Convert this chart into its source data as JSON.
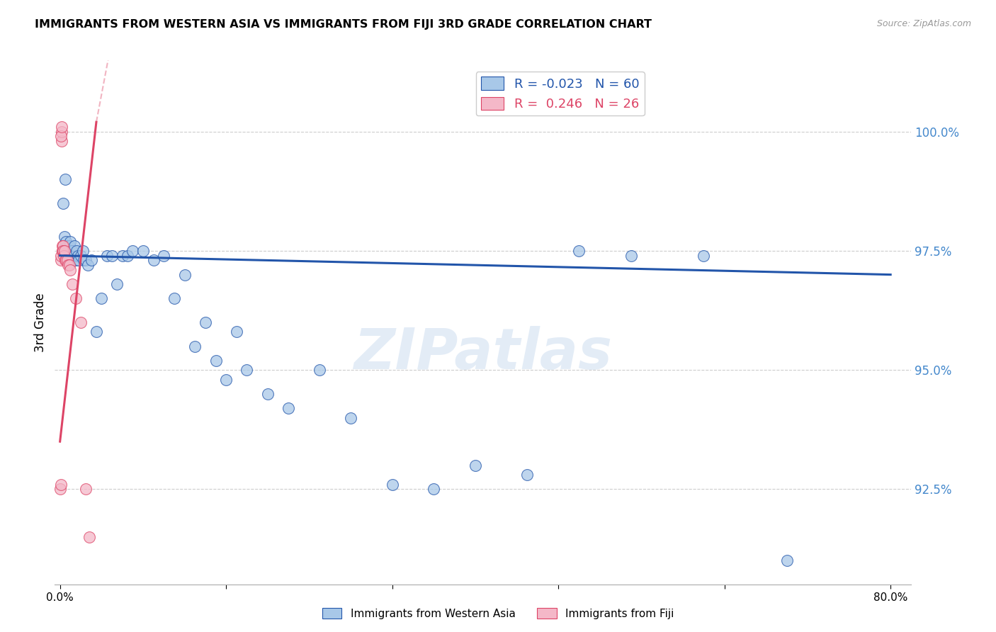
{
  "title": "IMMIGRANTS FROM WESTERN ASIA VS IMMIGRANTS FROM FIJI 3RD GRADE CORRELATION CHART",
  "source": "Source: ZipAtlas.com",
  "ylabel": "3rd Grade",
  "watermark": "ZIPatlas",
  "legend_blue_r": "R = -0.023",
  "legend_blue_n": "N = 60",
  "legend_pink_r": "R =  0.246",
  "legend_pink_n": "N = 26",
  "blue_color": "#a8c8e8",
  "pink_color": "#f4b8c8",
  "trend_blue": "#2255aa",
  "trend_pink": "#dd4466",
  "blue_scatter_x": [
    0.3,
    0.4,
    0.5,
    0.5,
    0.6,
    0.6,
    0.7,
    0.7,
    0.8,
    0.8,
    0.9,
    0.9,
    1.0,
    1.0,
    1.1,
    1.1,
    1.2,
    1.3,
    1.4,
    1.5,
    1.6,
    1.7,
    1.8,
    2.0,
    2.2,
    2.3,
    2.5,
    2.7,
    3.0,
    3.5,
    4.0,
    4.5,
    5.0,
    5.5,
    6.0,
    6.5,
    7.0,
    8.0,
    9.0,
    10.0,
    11.0,
    12.0,
    13.0,
    14.0,
    15.0,
    16.0,
    17.0,
    18.0,
    20.0,
    22.0,
    25.0,
    28.0,
    32.0,
    36.0,
    40.0,
    45.0,
    50.0,
    55.0,
    62.0,
    70.0
  ],
  "blue_scatter_y": [
    98.5,
    97.8,
    97.6,
    99.0,
    97.7,
    97.5,
    97.5,
    97.6,
    97.4,
    97.5,
    97.4,
    97.6,
    97.3,
    97.7,
    97.5,
    97.4,
    97.5,
    97.4,
    97.6,
    97.3,
    97.5,
    97.4,
    97.3,
    97.4,
    97.5,
    97.3,
    97.3,
    97.2,
    97.3,
    95.8,
    96.5,
    97.4,
    97.4,
    96.8,
    97.4,
    97.4,
    97.5,
    97.5,
    97.3,
    97.4,
    96.5,
    97.0,
    95.5,
    96.0,
    95.2,
    94.8,
    95.8,
    95.0,
    94.5,
    94.2,
    95.0,
    94.0,
    92.6,
    92.5,
    93.0,
    92.8,
    97.5,
    97.4,
    97.4,
    91.0
  ],
  "pink_scatter_x": [
    0.05,
    0.08,
    0.1,
    0.12,
    0.15,
    0.18,
    0.2,
    0.22,
    0.25,
    0.28,
    0.3,
    0.35,
    0.4,
    0.5,
    0.6,
    0.7,
    0.8,
    0.9,
    1.0,
    1.2,
    1.5,
    2.0,
    2.5,
    2.8,
    0.08,
    0.15
  ],
  "pink_scatter_y": [
    92.5,
    92.6,
    97.3,
    97.4,
    99.8,
    100.0,
    97.5,
    97.6,
    97.5,
    97.6,
    97.5,
    97.4,
    97.5,
    97.3,
    97.3,
    97.3,
    97.2,
    97.2,
    97.1,
    96.8,
    96.5,
    96.0,
    92.5,
    91.5,
    99.9,
    100.1
  ],
  "ymin": 90.5,
  "ymax": 101.5,
  "xmin": -0.5,
  "xmax": 82.0,
  "yticks": [
    92.5,
    95.0,
    97.5,
    100.0
  ],
  "ytick_labels": [
    "92.5%",
    "95.0%",
    "97.5%",
    "100.0%"
  ],
  "xtick_positions": [
    0.0,
    16.0,
    32.0,
    48.0,
    64.0,
    80.0
  ],
  "xtick_labels": [
    "0.0%",
    "",
    "",
    "",
    "",
    "80.0%"
  ],
  "blue_trend_x0": 0.0,
  "blue_trend_x1": 80.0,
  "blue_trend_y0": 97.4,
  "blue_trend_y1": 97.0,
  "pink_trend_x0": 0.0,
  "pink_trend_x1": 3.5,
  "pink_trend_y0": 93.5,
  "pink_trend_y1": 100.2
}
